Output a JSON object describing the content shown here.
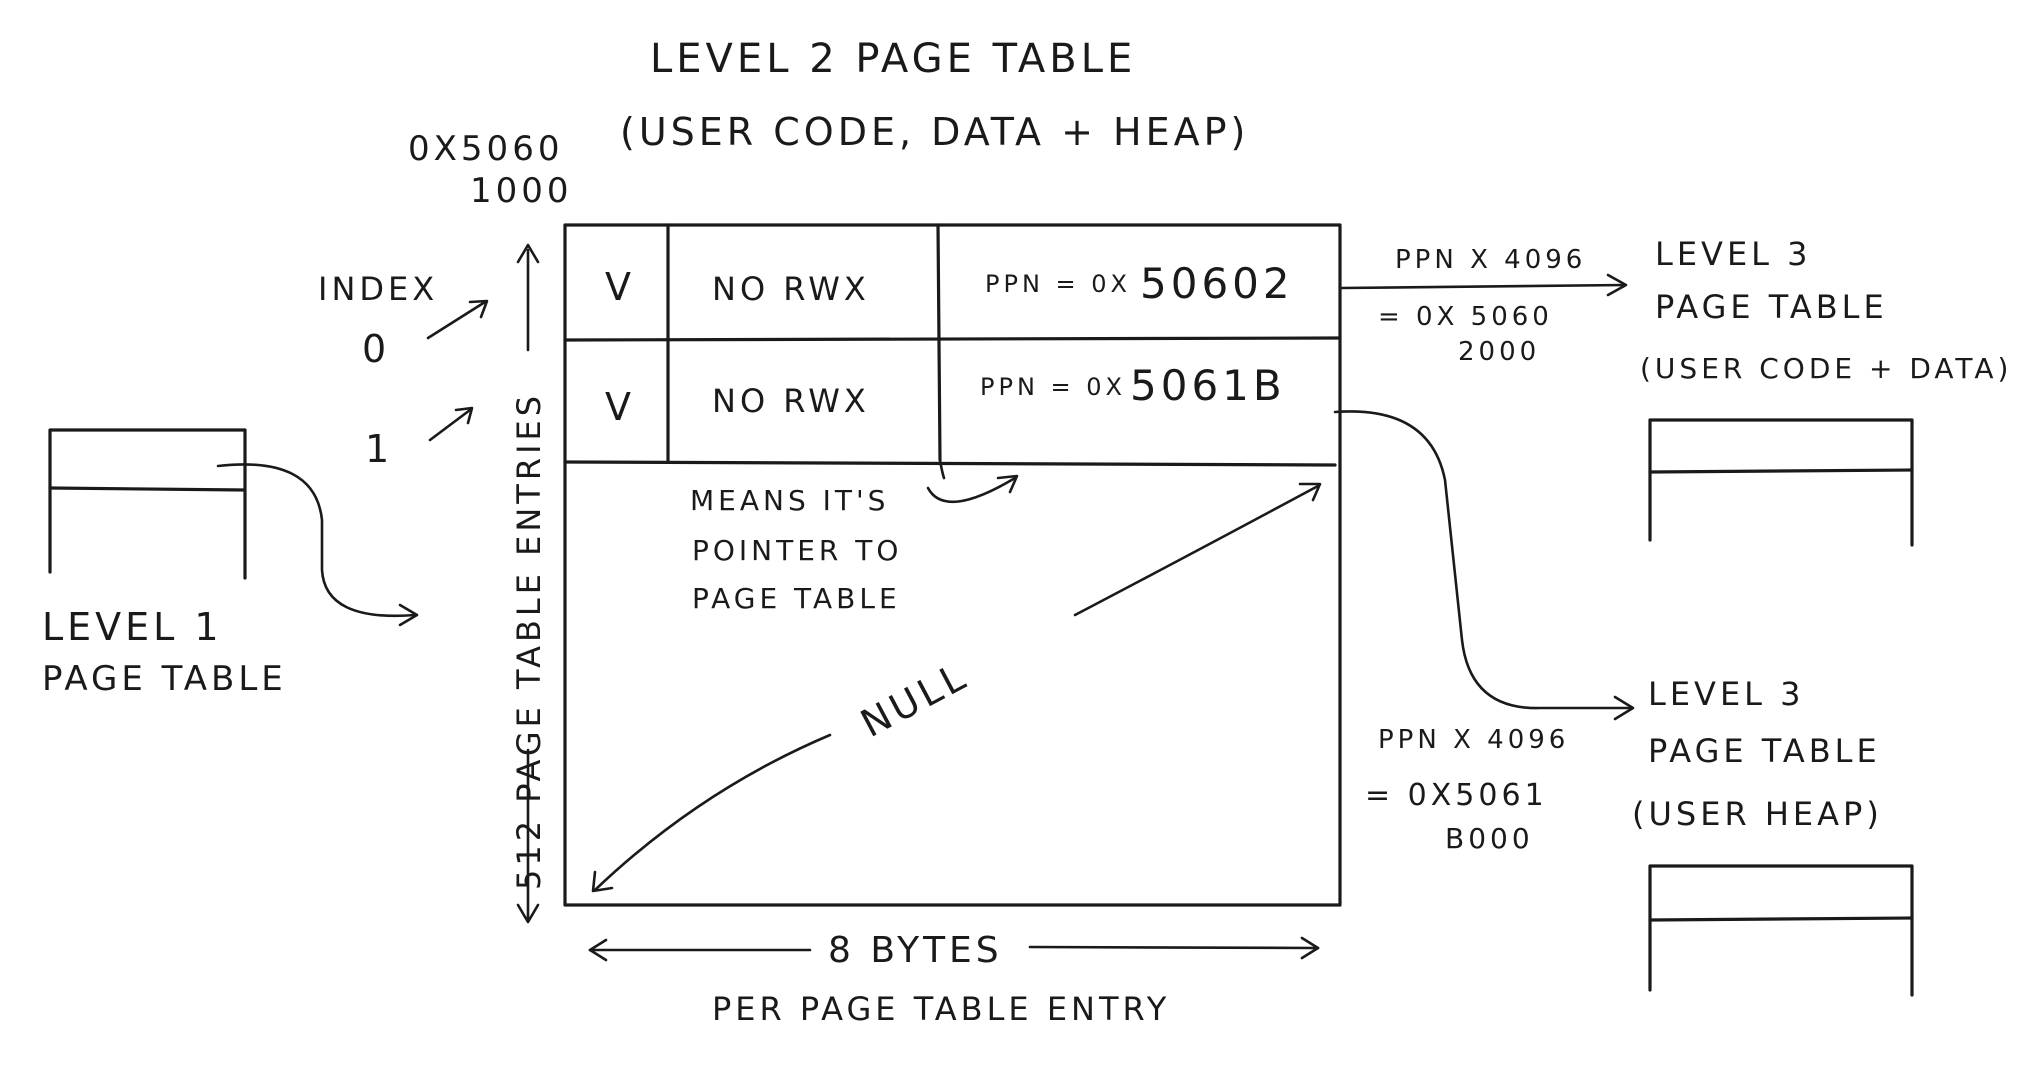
{
  "level2": {
    "title_line1": "LEVEL 2 PAGE TABLE",
    "title_line2": "(USER CODE, DATA + HEAP)",
    "address_line1": "0x5060",
    "address_line2": "1000",
    "index_label": "INDEX",
    "index_0": "0",
    "index_1": "1",
    "side_label": "512 PAGE TABLE ENTRIES",
    "null_label": "NULL",
    "width_label": "8 BYTES",
    "width_sub": "PER PAGE TABLE ENTRY",
    "note_line1": "MEANS IT'S",
    "note_line2": "POINTER TO",
    "note_line3": "PAGE TABLE",
    "entries": [
      {
        "valid": "V",
        "perm": "NO RWX",
        "ppn_prefix": "PPN = 0x",
        "ppn_value": "50602"
      },
      {
        "valid": "V",
        "perm": "NO RWX",
        "ppn_prefix": "PPN = 0x",
        "ppn_value": "5061B"
      }
    ]
  },
  "level1": {
    "title_line1": "LEVEL 1",
    "title_line2": "PAGE TABLE"
  },
  "calc_top": {
    "line1": "PPN x 4096",
    "line2": "= 0x 5060",
    "line3": "2000"
  },
  "calc_bottom": {
    "line1": "PPN x 4096",
    "line2": "= 0x5061",
    "line3": "B000"
  },
  "level3_code": {
    "title_line1": "LEVEL 3",
    "title_line2": "PAGE TABLE",
    "title_line3": "(USER CODE + DATA)"
  },
  "level3_heap": {
    "title_line1": "LEVEL 3",
    "title_line2": "PAGE TABLE",
    "title_line3": "(USER HEAP)"
  }
}
